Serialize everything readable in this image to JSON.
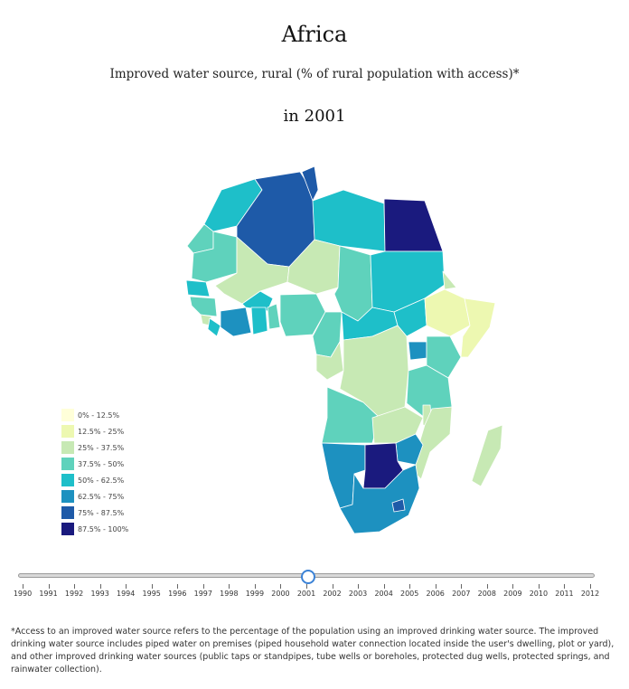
{
  "title": "Africa",
  "subtitle": "Improved water source, rural (% of rural population with access)*",
  "year_label": "in 2001",
  "legend": [
    {
      "label": "0% - 12.5%",
      "color": "#ffffd9"
    },
    {
      "label": "12.5% - 25%",
      "color": "#edf8b1"
    },
    {
      "label": "25% - 37.5%",
      "color": "#c7e9b4"
    },
    {
      "label": "37.5% - 50%",
      "color": "#5fd2bc"
    },
    {
      "label": "50% - 62.5%",
      "color": "#1ebfc9"
    },
    {
      "label": "62.5% - 75%",
      "color": "#1d91c0"
    },
    {
      "label": "75% - 87.5%",
      "color": "#1e5aa8"
    },
    {
      "label": "87.5% - 100%",
      "color": "#1a1a7e"
    }
  ],
  "slider": {
    "years": [
      "1990",
      "1991",
      "1992",
      "1993",
      "1994",
      "1995",
      "1996",
      "1997",
      "1998",
      "1999",
      "2000",
      "2001",
      "2002",
      "2003",
      "2004",
      "2005",
      "2006",
      "2007",
      "2008",
      "2009",
      "2010",
      "2011",
      "2012"
    ],
    "selected": "2001"
  },
  "footnote": "*Access to an improved water source refers to the percentage of the population using an improved drinking water source. The improved drinking water source includes piped water on premises (piped household water connection located inside the user's dwelling, plot or yard), and other improved drinking water sources (public taps or standpipes, tube wells or boreholes, protected dug wells, protected springs, and rainwater collection)."
}
